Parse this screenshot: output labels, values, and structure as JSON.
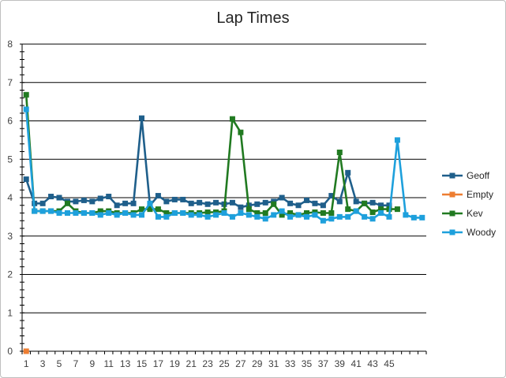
{
  "chart_data": {
    "type": "line",
    "title": "Lap Times",
    "xlabel": "",
    "ylabel": "",
    "ylim": [
      0,
      8
    ],
    "yticks": [
      "0",
      "1",
      "2",
      "3",
      "4",
      "5",
      "6",
      "7",
      "8"
    ],
    "xticks": [
      "1",
      "3",
      "5",
      "7",
      "9",
      "11",
      "13",
      "15",
      "17",
      "19",
      "21",
      "23",
      "25",
      "27",
      "29",
      "31",
      "33",
      "35",
      "37",
      "39",
      "41",
      "43",
      "45"
    ],
    "x_count": 49,
    "grid": true,
    "legend_position": "right",
    "series": [
      {
        "name": "Geoff",
        "color": "#1f5f8b",
        "values": [
          4.48,
          3.85,
          3.85,
          4.03,
          4.0,
          3.9,
          3.9,
          3.93,
          3.9,
          3.98,
          4.03,
          3.8,
          3.85,
          3.85,
          6.07,
          3.8,
          4.05,
          3.9,
          3.95,
          3.95,
          3.85,
          3.87,
          3.83,
          3.87,
          3.83,
          3.87,
          3.75,
          3.8,
          3.83,
          3.87,
          3.9,
          4.0,
          3.85,
          3.8,
          3.93,
          3.85,
          3.8,
          4.05,
          3.9,
          4.65,
          3.9,
          3.85,
          3.87,
          3.8,
          3.8
        ]
      },
      {
        "name": "Empty",
        "color": "#ed7d31",
        "values": [
          0
        ]
      },
      {
        "name": "Kev",
        "color": "#217a21",
        "values": [
          6.68,
          3.65,
          3.65,
          3.65,
          3.65,
          3.85,
          3.65,
          3.6,
          3.6,
          3.65,
          3.65,
          3.6,
          3.6,
          3.6,
          3.7,
          3.7,
          3.7,
          3.6,
          3.6,
          3.6,
          3.6,
          3.6,
          3.62,
          3.62,
          3.65,
          6.05,
          5.7,
          3.7,
          3.6,
          3.6,
          3.83,
          3.55,
          3.6,
          3.55,
          3.6,
          3.62,
          3.6,
          3.6,
          5.18,
          3.7,
          3.65,
          3.85,
          3.62,
          3.7,
          3.7,
          3.7
        ]
      },
      {
        "name": "Woody",
        "color": "#1ea0dc",
        "values": [
          6.3,
          3.65,
          3.65,
          3.65,
          3.6,
          3.6,
          3.6,
          3.6,
          3.6,
          3.55,
          3.6,
          3.55,
          3.6,
          3.55,
          3.55,
          3.85,
          3.5,
          3.5,
          3.6,
          3.6,
          3.55,
          3.55,
          3.5,
          3.55,
          3.6,
          3.5,
          3.6,
          3.55,
          3.5,
          3.45,
          3.55,
          3.65,
          3.5,
          3.55,
          3.5,
          3.55,
          3.4,
          3.45,
          3.5,
          3.5,
          3.65,
          3.5,
          3.45,
          3.6,
          3.5,
          5.5,
          3.55,
          3.48,
          3.48
        ]
      }
    ]
  }
}
